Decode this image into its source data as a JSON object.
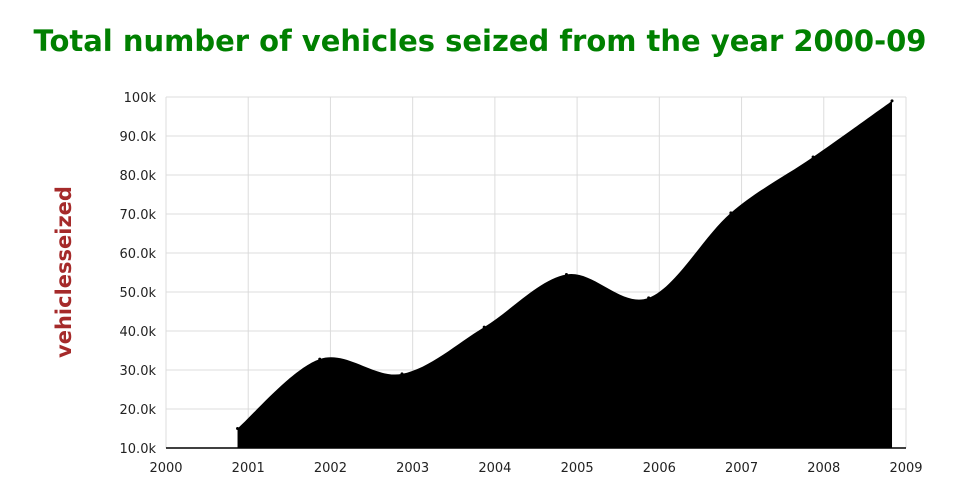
{
  "chart_data": {
    "type": "area",
    "title": "Total number of vehicles seized from the year 2000-09",
    "xlabel": "",
    "ylabel": "vehiclesseized",
    "x": [
      2000.87,
      2001.87,
      2002.87,
      2003.87,
      2004.87,
      2005.87,
      2006.87,
      2007.87,
      2008.83
    ],
    "values": [
      15000,
      32800,
      29000,
      41000,
      54500,
      48500,
      70300,
      84600,
      99000
    ],
    "xlim": [
      2000,
      2009
    ],
    "ylim": [
      10000,
      100000
    ],
    "xticks": [
      "2000",
      "2001",
      "2002",
      "2003",
      "2004",
      "2005",
      "2006",
      "2007",
      "2008",
      "2009"
    ],
    "yticks": [
      "10.0k",
      "20.0k",
      "30.0k",
      "40.0k",
      "50.0k",
      "60.0k",
      "70.0k",
      "80.0k",
      "90.0k",
      "100k"
    ],
    "grid": true,
    "fill_color": "#000000",
    "title_color": "#008000",
    "ylabel_color": "#a52a2a",
    "smooth": true
  }
}
